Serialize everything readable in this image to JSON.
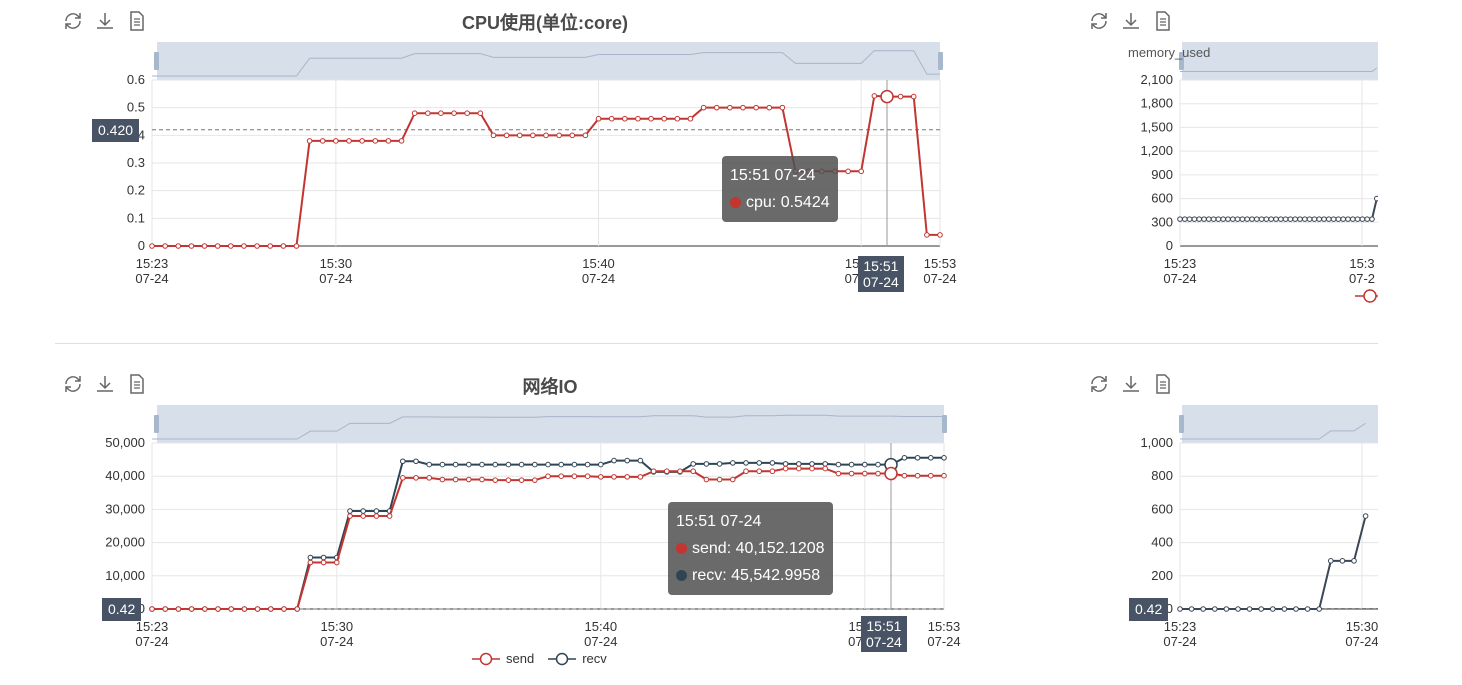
{
  "toolbar_icons": [
    "refresh-icon",
    "download-icon",
    "data-view-icon"
  ],
  "colors": {
    "cpu": "#c23531",
    "send": "#c23531",
    "recv": "#2f4554",
    "zoom_bg": "#d2dbe8",
    "badge": "#485466",
    "grid": "#e6e6e6"
  },
  "panels": {
    "cpu": {
      "title": "CPU使用(单位:core)",
      "pointer_value": "0.420",
      "pointer_time": {
        "time": "15:51",
        "date": "07-24"
      },
      "tooltip": {
        "header": "15:51 07-24",
        "rows": [
          {
            "label": "cpu: 0.5424"
          }
        ]
      }
    },
    "memory": {
      "legend_label": "memory_used"
    },
    "network": {
      "title": "网络IO",
      "pointer_value": "0.42",
      "pointer_time": {
        "time": "15:51",
        "date": "07-24"
      },
      "tooltip": {
        "header": "15:51 07-24",
        "rows": [
          {
            "label": "send: 40,152.1208"
          },
          {
            "label": "recv: 45,542.9958"
          }
        ]
      },
      "legend": [
        "send",
        "recv"
      ]
    },
    "fourth": {
      "pointer_value": "0.42"
    }
  },
  "chart_data": [
    {
      "type": "line",
      "title": "CPU使用(单位:core)",
      "x_ticks": [
        {
          "time": "15:23",
          "date": "07-24",
          "m": 0
        },
        {
          "time": "15:30",
          "date": "07-24",
          "m": 7
        },
        {
          "time": "15:40",
          "date": "07-24",
          "m": 17
        },
        {
          "time": "15:50",
          "date": "07-24",
          "m": 27
        },
        {
          "time": "15:53",
          "date": "07-24",
          "m": 30
        }
      ],
      "yticks": [
        0,
        0.1,
        0.2,
        0.3,
        0.4,
        0.5,
        0.6
      ],
      "ylim": [
        0,
        0.6
      ],
      "series": [
        {
          "name": "cpu",
          "x_minutes": [
            0,
            0.5,
            1,
            1.5,
            2,
            2.5,
            3,
            3.5,
            4,
            4.5,
            5,
            5.5,
            6,
            6.5,
            7,
            7.5,
            8,
            8.5,
            9,
            9.5,
            10,
            10.5,
            11,
            11.5,
            12,
            12.5,
            13,
            13.5,
            14,
            14.5,
            15,
            15.5,
            16,
            16.5,
            17,
            17.5,
            18,
            18.5,
            19,
            19.5,
            20,
            20.5,
            21,
            21.5,
            22,
            22.5,
            23,
            23.5,
            24,
            24.5,
            25,
            25.5,
            26,
            26.5,
            27,
            27.5,
            28,
            28.5,
            29,
            29.5,
            30
          ],
          "values": [
            0,
            0,
            0,
            0,
            0,
            0,
            0,
            0,
            0,
            0,
            0,
            0,
            0.38,
            0.38,
            0.38,
            0.38,
            0.38,
            0.38,
            0.38,
            0.38,
            0.48,
            0.48,
            0.48,
            0.48,
            0.48,
            0.48,
            0.4,
            0.4,
            0.4,
            0.4,
            0.4,
            0.4,
            0.4,
            0.4,
            0.46,
            0.46,
            0.46,
            0.46,
            0.46,
            0.46,
            0.46,
            0.46,
            0.5,
            0.5,
            0.5,
            0.5,
            0.5,
            0.5,
            0.5,
            0.27,
            0.27,
            0.27,
            0.27,
            0.27,
            0.27,
            0.5424,
            0.54,
            0.54,
            0.54,
            0.04,
            0.04
          ]
        }
      ]
    },
    {
      "type": "line",
      "title": "",
      "x_ticks": [
        {
          "time": "15:23",
          "date": "07-24"
        },
        {
          "time": "15:3",
          "date": "07-2"
        }
      ],
      "yticks": [
        0,
        300,
        600,
        900,
        1200,
        1500,
        1800,
        2100
      ],
      "ylim": [
        0,
        2100
      ],
      "series": [
        {
          "name": "memory_used",
          "values": [
            340,
            340,
            340,
            340,
            340,
            340,
            340,
            340,
            340,
            340,
            340,
            340,
            340,
            340,
            340,
            340,
            340,
            340,
            340,
            340,
            340,
            340,
            340,
            340,
            340,
            340,
            340,
            340,
            340,
            340,
            340,
            340,
            340,
            340,
            340,
            340,
            340,
            340,
            340,
            340,
            340,
            600
          ]
        }
      ]
    },
    {
      "type": "line",
      "title": "网络IO",
      "x_ticks": [
        {
          "time": "15:23",
          "date": "07-24",
          "m": 0
        },
        {
          "time": "15:30",
          "date": "07-24",
          "m": 7
        },
        {
          "time": "15:40",
          "date": "07-24",
          "m": 17
        },
        {
          "time": "15:50",
          "date": "07-24",
          "m": 27
        },
        {
          "time": "15:53",
          "date": "07-24",
          "m": 30
        }
      ],
      "yticks": [
        0,
        10000,
        20000,
        30000,
        40000,
        50000
      ],
      "ylim": [
        0,
        50000
      ],
      "series": [
        {
          "name": "send",
          "x_minutes": [
            0,
            0.5,
            1,
            1.5,
            2,
            2.5,
            3,
            3.5,
            4,
            4.5,
            5,
            5.5,
            6,
            6.5,
            7,
            7.5,
            8,
            8.5,
            9,
            9.5,
            10,
            10.5,
            11,
            11.5,
            12,
            12.5,
            13,
            13.5,
            14,
            14.5,
            15,
            15.5,
            16,
            16.5,
            17,
            17.5,
            18,
            18.5,
            19,
            19.5,
            20,
            20.5,
            21,
            21.5,
            22,
            22.5,
            23,
            23.5,
            24,
            24.5,
            25,
            25.5,
            26,
            26.5,
            27,
            27.5,
            28,
            28.5,
            29,
            29.5,
            30
          ],
          "values": [
            0,
            0,
            0,
            0,
            0,
            0,
            0,
            0,
            0,
            0,
            0,
            0,
            14000,
            14000,
            14000,
            28000,
            28000,
            28000,
            28000,
            39500,
            39500,
            39500,
            39000,
            39000,
            39000,
            39000,
            38800,
            38800,
            38800,
            38800,
            40000,
            40000,
            40000,
            40000,
            39800,
            39800,
            39800,
            39800,
            41500,
            41500,
            41500,
            41500,
            39000,
            39000,
            39000,
            41500,
            41500,
            41500,
            42300,
            42300,
            42300,
            42300,
            40800,
            40800,
            40800,
            40800,
            40800,
            40152,
            40152,
            40152,
            40152
          ]
        },
        {
          "name": "recv",
          "x_minutes": [
            0,
            0.5,
            1,
            1.5,
            2,
            2.5,
            3,
            3.5,
            4,
            4.5,
            5,
            5.5,
            6,
            6.5,
            7,
            7.5,
            8,
            8.5,
            9,
            9.5,
            10,
            10.5,
            11,
            11.5,
            12,
            12.5,
            13,
            13.5,
            14,
            14.5,
            15,
            15.5,
            16,
            16.5,
            17,
            17.5,
            18,
            18.5,
            19,
            19.5,
            20,
            20.5,
            21,
            21.5,
            22,
            22.5,
            23,
            23.5,
            24,
            24.5,
            25,
            25.5,
            26,
            26.5,
            27,
            27.5,
            28,
            28.5,
            29,
            29.5,
            30
          ],
          "values": [
            0,
            0,
            0,
            0,
            0,
            0,
            0,
            0,
            0,
            0,
            0,
            0,
            15500,
            15500,
            15500,
            29500,
            29500,
            29500,
            29500,
            44500,
            44500,
            43500,
            43500,
            43500,
            43500,
            43500,
            43500,
            43500,
            43500,
            43500,
            43500,
            43500,
            43500,
            43500,
            43500,
            44700,
            44700,
            44700,
            41300,
            41300,
            41300,
            43700,
            43700,
            43700,
            44000,
            44000,
            44000,
            44000,
            43700,
            43700,
            43700,
            43700,
            43500,
            43500,
            43500,
            43500,
            43500,
            45543,
            45543,
            45543,
            45543
          ]
        }
      ],
      "legend_position": "bottom-center"
    },
    {
      "type": "line",
      "title": "",
      "x_ticks": [
        {
          "time": "15:23",
          "date": "07-24"
        },
        {
          "time": "15:30",
          "date": "07-24"
        }
      ],
      "yticks": [
        0,
        200,
        400,
        600,
        800,
        1000
      ],
      "ylim": [
        0,
        1000
      ],
      "series": [
        {
          "name": "",
          "values": [
            0,
            0,
            0,
            0,
            0,
            0,
            0,
            0,
            0,
            0,
            0,
            0,
            0,
            290,
            290,
            290,
            560
          ]
        }
      ]
    }
  ]
}
